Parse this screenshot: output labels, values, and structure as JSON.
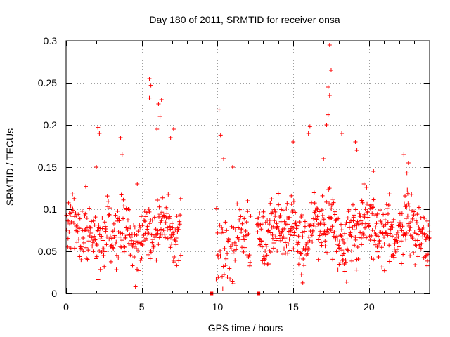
{
  "chart_data": {
    "type": "scatter",
    "title": "Day 180 of 2011, SRMTID for receiver onsa",
    "xlabel": "GPS time / hours",
    "ylabel": "SRMTID / TECUs",
    "xlim": [
      0,
      24
    ],
    "ylim": [
      0,
      0.3
    ],
    "xticks": [
      0,
      5,
      10,
      15,
      20
    ],
    "xtick_labels": [
      "0",
      "5",
      "10",
      "15",
      "20"
    ],
    "yticks": [
      0,
      0.05,
      0.1,
      0.15,
      0.2,
      0.25,
      0.3
    ],
    "ytick_labels": [
      "0",
      "0.05",
      "0.1",
      "0.15",
      "0.2",
      "0.25",
      "0.3"
    ],
    "grid": true,
    "marker": "+",
    "color": "#ff0000",
    "series": [
      {
        "name": "SRMTID",
        "segments": [
          {
            "start": 0.0,
            "end": 7.6,
            "step": 0.025,
            "mean": 0.07,
            "spread": 0.03
          },
          {
            "start": 9.9,
            "end": 12.2,
            "step": 0.03,
            "mean": 0.06,
            "spread": 0.035
          },
          {
            "start": 12.6,
            "end": 24.0,
            "step": 0.022,
            "mean": 0.075,
            "spread": 0.03
          }
        ],
        "highlights": [
          {
            "x": 2.1,
            "y": 0.197
          },
          {
            "x": 2.2,
            "y": 0.19
          },
          {
            "x": 3.6,
            "y": 0.185
          },
          {
            "x": 3.7,
            "y": 0.165
          },
          {
            "x": 5.5,
            "y": 0.255
          },
          {
            "x": 5.6,
            "y": 0.247
          },
          {
            "x": 5.5,
            "y": 0.232
          },
          {
            "x": 6.1,
            "y": 0.225
          },
          {
            "x": 6.3,
            "y": 0.23
          },
          {
            "x": 6.2,
            "y": 0.21
          },
          {
            "x": 6.0,
            "y": 0.195
          },
          {
            "x": 7.1,
            "y": 0.195
          },
          {
            "x": 6.9,
            "y": 0.185
          },
          {
            "x": 10.1,
            "y": 0.218
          },
          {
            "x": 10.2,
            "y": 0.188
          },
          {
            "x": 10.4,
            "y": 0.16
          },
          {
            "x": 11.0,
            "y": 0.15
          },
          {
            "x": 16.1,
            "y": 0.198
          },
          {
            "x": 16.0,
            "y": 0.19
          },
          {
            "x": 17.4,
            "y": 0.295
          },
          {
            "x": 17.5,
            "y": 0.265
          },
          {
            "x": 17.3,
            "y": 0.245
          },
          {
            "x": 17.4,
            "y": 0.235
          },
          {
            "x": 17.3,
            "y": 0.212
          },
          {
            "x": 17.2,
            "y": 0.2
          },
          {
            "x": 18.2,
            "y": 0.19
          },
          {
            "x": 19.1,
            "y": 0.18
          },
          {
            "x": 19.2,
            "y": 0.17
          },
          {
            "x": 17.0,
            "y": 0.16
          },
          {
            "x": 22.3,
            "y": 0.165
          },
          {
            "x": 22.6,
            "y": 0.155
          },
          {
            "x": 22.5,
            "y": 0.143
          },
          {
            "x": 15.0,
            "y": 0.18
          },
          {
            "x": 1.3,
            "y": 0.127
          },
          {
            "x": 2.0,
            "y": 0.15
          },
          {
            "x": 4.7,
            "y": 0.13
          },
          {
            "x": 12.0,
            "y": 0.11
          },
          {
            "x": 20.3,
            "y": 0.145
          }
        ],
        "zero_points": [
          9.6,
          12.7
        ]
      }
    ]
  }
}
